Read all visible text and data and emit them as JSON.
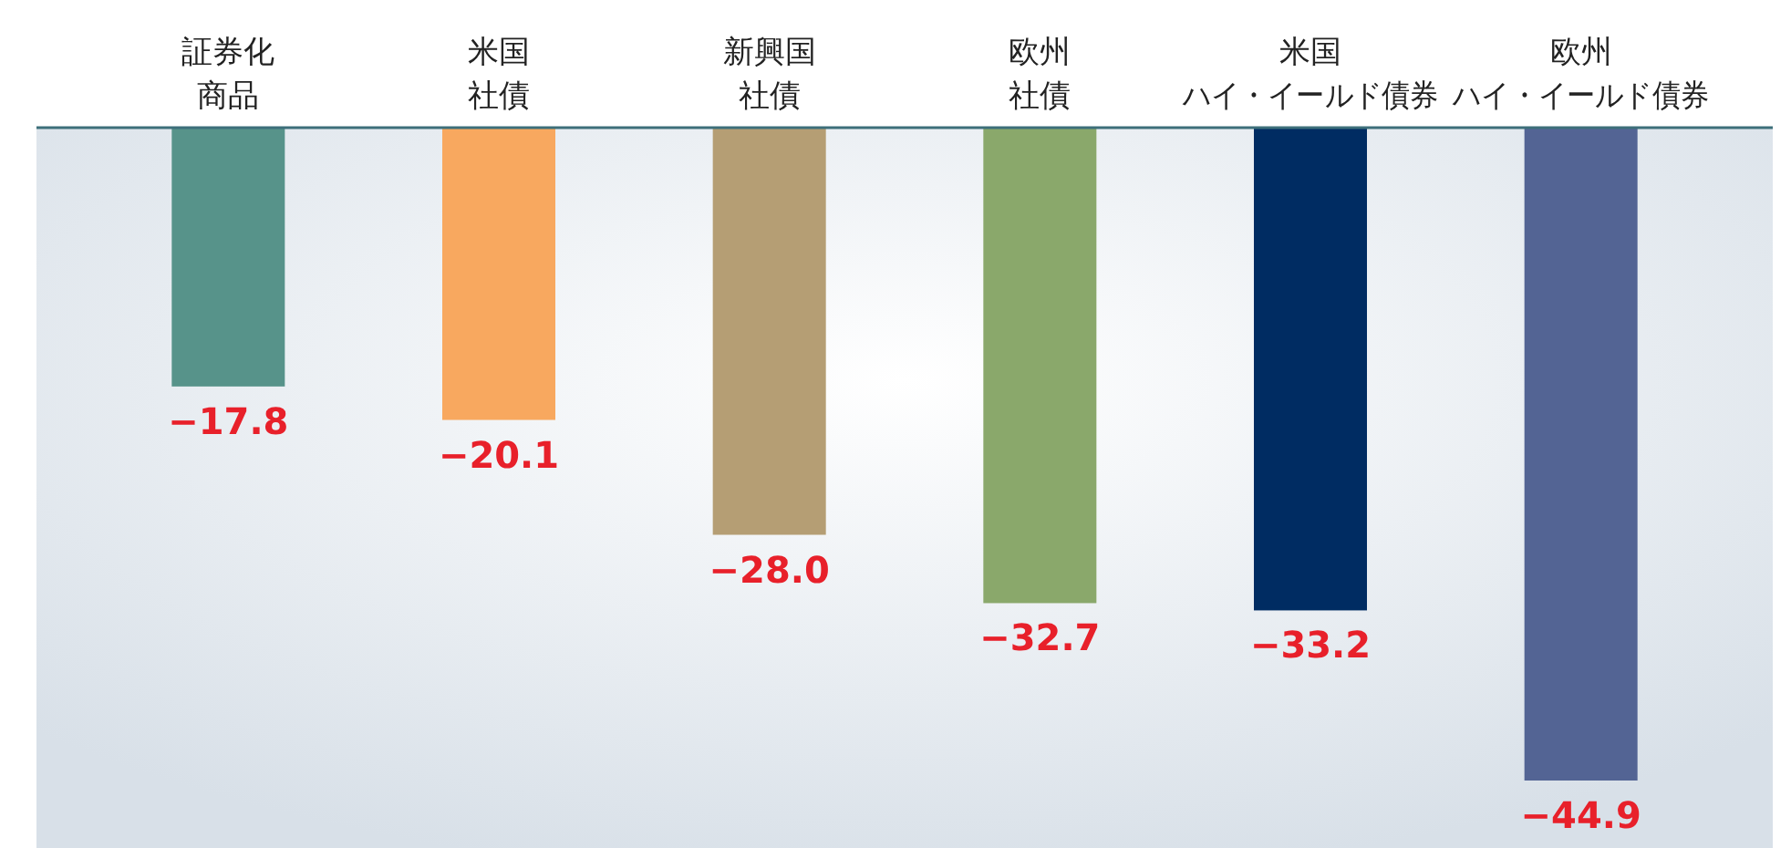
{
  "chart_data": {
    "type": "bar",
    "categories": [
      "証券化商品",
      "米国社債",
      "新興国社債",
      "欧州社債",
      "米国ハイ・イールド債券",
      "欧州ハイ・イールド債券"
    ],
    "values": [
      -17.8,
      -20.1,
      -28.0,
      -32.7,
      -33.2,
      -44.9
    ],
    "colors": [
      "#57938a",
      "#f8a85f",
      "#b59e74",
      "#8aa86b",
      "#002c62",
      "#536494"
    ],
    "value_labels": [
      "−17.8",
      "−20.1",
      "−28.0",
      "−32.7",
      "−33.2",
      "−44.9"
    ]
  }
}
